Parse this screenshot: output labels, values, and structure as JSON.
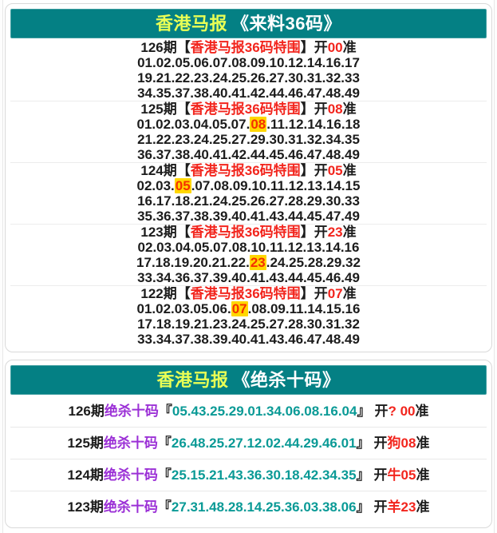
{
  "colors": {
    "header_bg": "#048084",
    "brand_yellow": "#e9ff55",
    "red": "#f2251d",
    "purple": "#9b30d6",
    "teal_numbers": "#0a9a96",
    "highlight_bg": "#ffd700",
    "highlight_text": "#f53000",
    "text": "#1c1c1c"
  },
  "sections": [
    {
      "title_brand": "香港马报",
      "title_book": "《来料36码》",
      "entries": [
        {
          "period": "126期",
          "bracket_open": "【",
          "tag": "香港马报36码特围",
          "bracket_close": "】",
          "open_label": "开",
          "result": "00",
          "accurate": "准",
          "lines": [
            {
              "pre": "01.02.05.06.07.08.09.10.12.14.16.17",
              "hl": "",
              "post": ""
            },
            {
              "pre": "19.21.22.23.24.25.26.27.30.31.32.33",
              "hl": "",
              "post": ""
            },
            {
              "pre": "34.35.37.38.40.41.42.44.46.47.48.49",
              "hl": "",
              "post": ""
            }
          ]
        },
        {
          "period": "125期",
          "bracket_open": "【",
          "tag": "香港马报36码特围",
          "bracket_close": "】",
          "open_label": "开",
          "result": "08",
          "accurate": "准",
          "lines": [
            {
              "pre": "01.02.03.04.05.07.",
              "hl": "08",
              "post": ".11.12.14.16.18"
            },
            {
              "pre": "21.22.23.24.25.27.29.30.31.32.34.35",
              "hl": "",
              "post": ""
            },
            {
              "pre": "36.37.38.40.41.42.44.45.46.47.48.49",
              "hl": "",
              "post": ""
            }
          ]
        },
        {
          "period": "124期",
          "bracket_open": "【",
          "tag": "香港马报36码特围",
          "bracket_close": "】",
          "open_label": "开",
          "result": "05",
          "accurate": "准",
          "lines": [
            {
              "pre": "02.03.",
              "hl": "05",
              "post": ".07.08.09.10.11.12.13.14.15"
            },
            {
              "pre": "16.17.18.21.24.25.26.27.28.29.30.33",
              "hl": "",
              "post": ""
            },
            {
              "pre": "35.36.37.38.39.40.41.43.44.45.47.49",
              "hl": "",
              "post": ""
            }
          ]
        },
        {
          "period": "123期",
          "bracket_open": "【",
          "tag": "香港马报36码特围",
          "bracket_close": "】",
          "open_label": "开",
          "result": "23",
          "accurate": "准",
          "lines": [
            {
              "pre": "02.03.04.05.07.08.10.11.12.13.14.16",
              "hl": "",
              "post": ""
            },
            {
              "pre": "17.18.19.20.21.22.",
              "hl": "23",
              "post": ".24.25.28.29.32"
            },
            {
              "pre": "33.34.36.37.39.40.41.43.44.45.46.49",
              "hl": "",
              "post": ""
            }
          ]
        },
        {
          "period": "122期",
          "bracket_open": "【",
          "tag": "香港马报36码特围",
          "bracket_close": "】",
          "open_label": "开",
          "result": "07",
          "accurate": "准",
          "lines": [
            {
              "pre": "01.02.03.05.06.",
              "hl": "07",
              "post": ".08.09.11.14.15.16"
            },
            {
              "pre": "17.18.19.21.23.24.25.27.28.30.31.32",
              "hl": "",
              "post": ""
            },
            {
              "pre": "33.34.37.38.39.40.41.43.46.47.48.49",
              "hl": "",
              "post": ""
            }
          ]
        }
      ]
    },
    {
      "title_brand": "香港马报",
      "title_book": "《绝杀十码》",
      "rows": [
        {
          "period": "126期",
          "label": "绝杀十码",
          "bracket_open": "『",
          "numbers": "05.43.25.29.01.34.06.08.16.04",
          "bracket_close": "』",
          "open_label": "开",
          "result": "? 00",
          "accurate": "准"
        },
        {
          "period": "125期",
          "label": "绝杀十码",
          "bracket_open": "『",
          "numbers": "26.48.25.27.12.02.44.29.46.01",
          "bracket_close": "』",
          "open_label": "开",
          "result": "狗08",
          "accurate": "准"
        },
        {
          "period": "124期",
          "label": "绝杀十码",
          "bracket_open": "『",
          "numbers": "25.15.21.43.36.30.18.42.34.35",
          "bracket_close": "』",
          "open_label": "开",
          "result": "牛05",
          "accurate": "准"
        },
        {
          "period": "123期",
          "label": "绝杀十码",
          "bracket_open": "『",
          "numbers": "27.31.48.28.14.25.36.03.38.06",
          "bracket_close": "』",
          "open_label": "开",
          "result": "羊23",
          "accurate": "准"
        }
      ]
    }
  ]
}
